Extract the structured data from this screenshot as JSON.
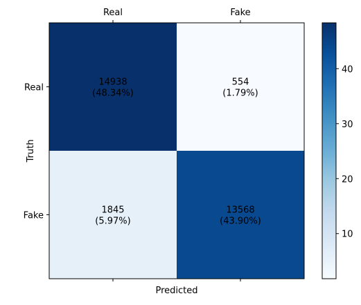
{
  "chart_data": {
    "type": "heatmap",
    "title": "",
    "xlabel": "Predicted",
    "ylabel": "Truth",
    "x_tick_labels": [
      "Real",
      "Fake"
    ],
    "y_tick_labels": [
      "Real",
      "Fake"
    ],
    "x_tick_position": "top",
    "cells": [
      [
        {
          "count": "14938",
          "percent": "(48.34%)",
          "value": 48.34
        },
        {
          "count": "554",
          "percent": "(1.79%)",
          "value": 1.79
        }
      ],
      [
        {
          "count": "1845",
          "percent": "(5.97%)",
          "value": 5.97
        },
        {
          "count": "13568",
          "percent": "(43.90%)",
          "value": 43.9
        }
      ]
    ],
    "colormap": "Blues",
    "colorbar": {
      "vmin": 1.79,
      "vmax": 48.34,
      "ticks": [
        10,
        20,
        30,
        40
      ],
      "tick_labels": [
        "10",
        "20",
        "30",
        "40"
      ]
    },
    "grid": false
  }
}
